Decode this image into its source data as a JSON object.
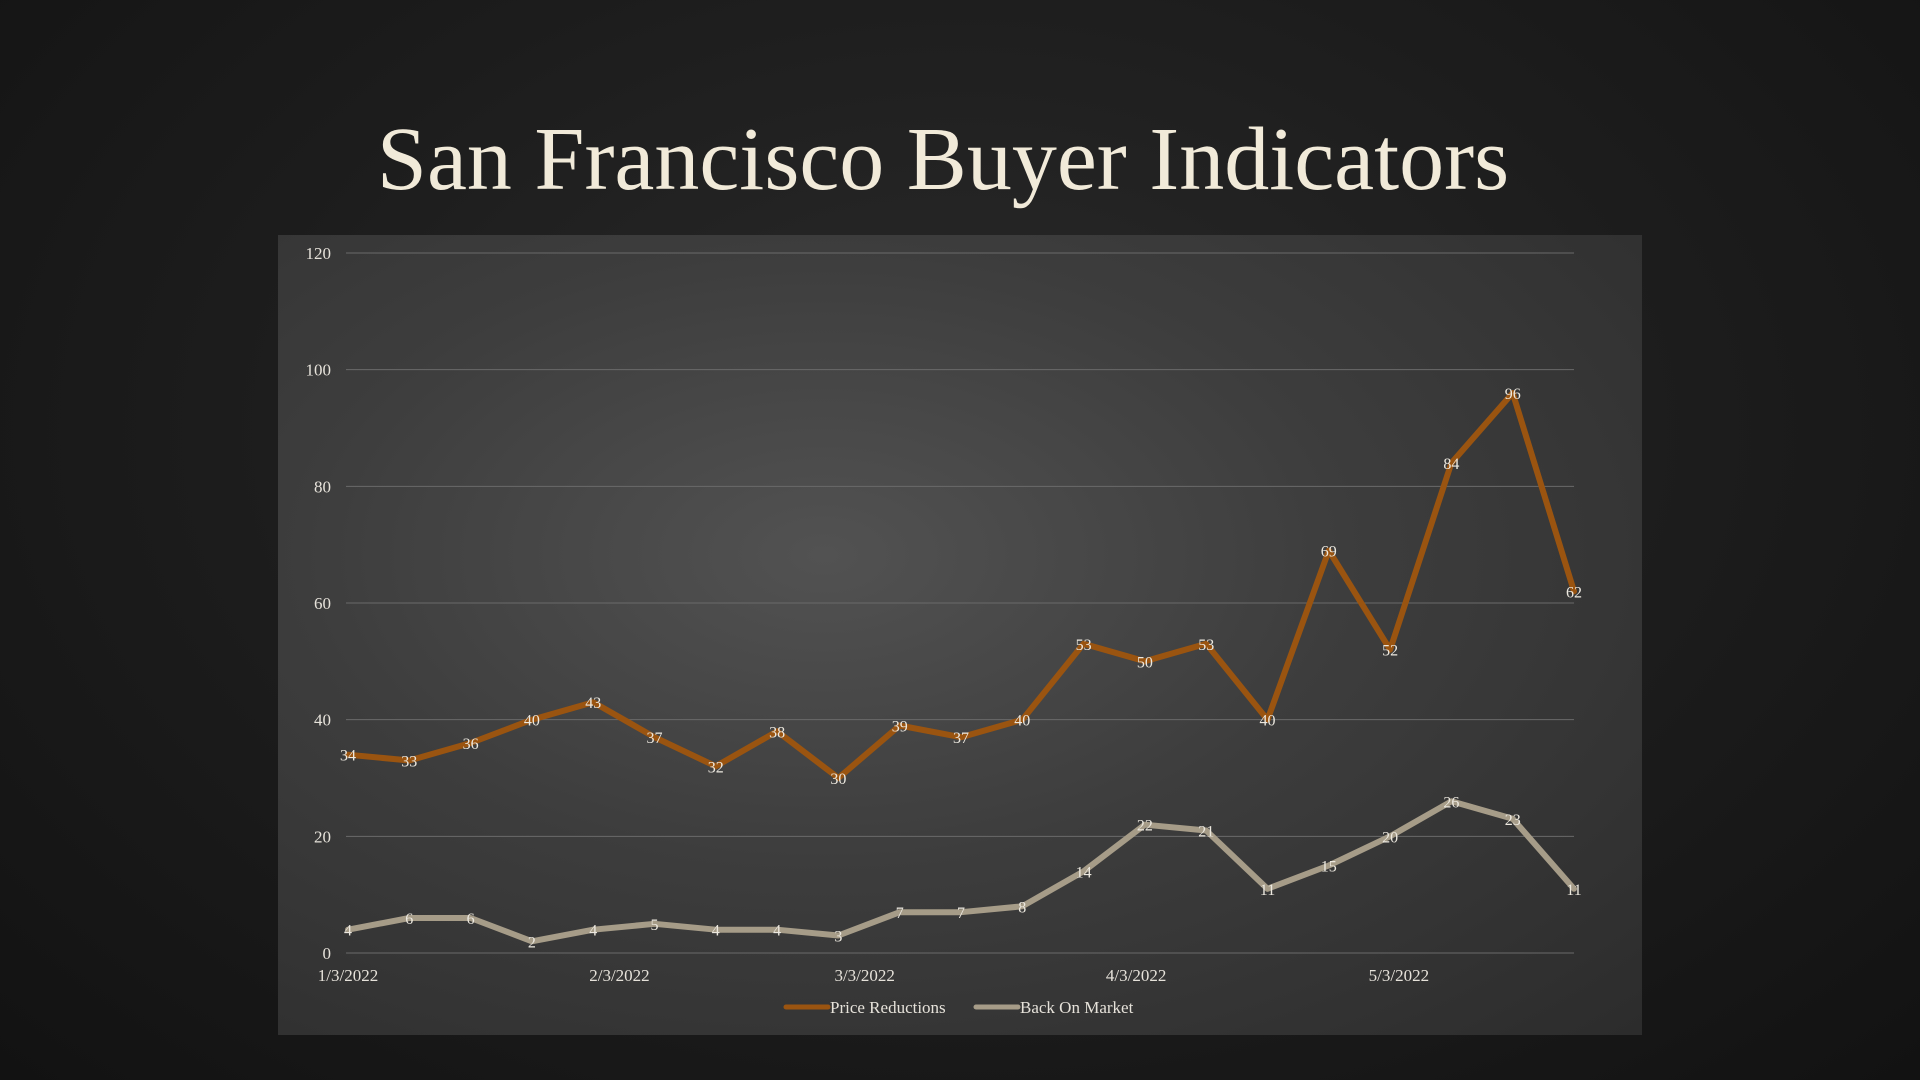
{
  "slide": {
    "title": "San Francisco Buyer Indicators"
  },
  "chart_data": {
    "type": "line",
    "title": "",
    "xlabel": "",
    "ylabel": "",
    "x": [
      "1/3/2022",
      "1/10/2022",
      "1/17/2022",
      "1/24/2022",
      "1/31/2022",
      "2/7/2022",
      "2/14/2022",
      "2/21/2022",
      "2/28/2022",
      "3/7/2022",
      "3/14/2022",
      "3/21/2022",
      "3/28/2022",
      "4/4/2022",
      "4/11/2022",
      "4/18/2022",
      "4/25/2022",
      "5/2/2022",
      "5/9/2022",
      "5/16/2022",
      "5/23/2022"
    ],
    "x_tick_labels": [
      "1/3/2022",
      "2/3/2022",
      "3/3/2022",
      "4/3/2022",
      "5/3/2022"
    ],
    "ylim": [
      0,
      120
    ],
    "y_ticks": [
      0,
      20,
      40,
      60,
      80,
      100,
      120
    ],
    "grid": true,
    "legend_position": "bottom",
    "series": [
      {
        "name": "Price Reductions",
        "color": "#9a5410",
        "values": [
          34,
          33,
          36,
          40,
          43,
          37,
          32,
          38,
          30,
          39,
          37,
          40,
          53,
          50,
          53,
          40,
          69,
          52,
          84,
          96,
          62
        ]
      },
      {
        "name": "Back On Market",
        "color": "#a69c88",
        "values": [
          4,
          6,
          6,
          2,
          4,
          5,
          4,
          4,
          3,
          7,
          7,
          8,
          14,
          22,
          21,
          11,
          15,
          20,
          26,
          23,
          11
        ]
      }
    ]
  }
}
